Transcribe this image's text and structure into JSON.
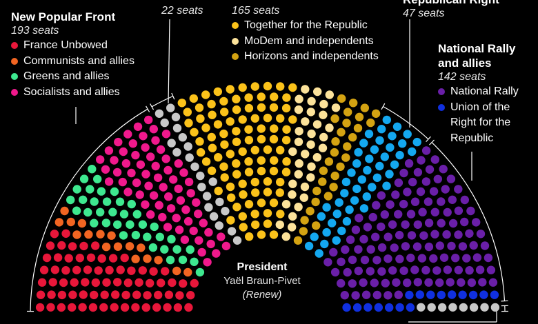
{
  "chart_data": {
    "type": "hemicycle",
    "title": "",
    "total_seats": 577,
    "groups": [
      {
        "key": "nfp",
        "name": "New Popular Front",
        "seats_label": "193 seats",
        "seats": 193,
        "parties": [
          {
            "name": "France Unbowed",
            "color": "#e8173a",
            "seats": 72
          },
          {
            "name": "Communists and allies",
            "color": "#f26522",
            "seats": 17
          },
          {
            "name": "Greens and allies",
            "color": "#3ee88f",
            "seats": 38
          },
          {
            "name": "Socialists and allies",
            "color": "#f0198c",
            "seats": 66
          }
        ]
      },
      {
        "key": "other",
        "name": "",
        "seats_label": "22 seats",
        "seats": 22,
        "parties": [
          {
            "name": "",
            "color": "#c8c8c8",
            "seats": 22
          }
        ]
      },
      {
        "key": "ensemble",
        "name": "",
        "seats_label": "165 seats",
        "seats": 165,
        "parties": [
          {
            "name": "Together for the Republic",
            "color": "#fbc21a",
            "seats": 99
          },
          {
            "name": "MoDem and independents",
            "color": "#fce29a",
            "seats": 36
          },
          {
            "name": "Horizons and independents",
            "color": "#d4a312",
            "seats": 30
          }
        ]
      },
      {
        "key": "lr",
        "name": "Republican Right",
        "seats_label": "47 seats",
        "seats": 47,
        "parties": [
          {
            "name": "Republican Right",
            "color": "#14a8f0",
            "seats": 47
          }
        ]
      },
      {
        "key": "rn",
        "name": "National Rally and allies",
        "seats_label": "142 seats",
        "seats": 142,
        "parties": [
          {
            "name": "National Rally",
            "color": "#6a1fa8",
            "seats": 126
          },
          {
            "name": "Union of the Right for the Republic",
            "color": "#1030e0",
            "seats": 16
          }
        ]
      },
      {
        "key": "ni",
        "name": "",
        "seats_label": "",
        "seats": 8,
        "parties": [
          {
            "name": "",
            "color": "#c8c8c8",
            "seats": 8
          }
        ]
      }
    ],
    "president": {
      "title": "President",
      "name": "Yaël Braun-Pivet",
      "party": "(Renew)"
    }
  },
  "labels": {
    "nfp_title": "New Popular Front",
    "nfp_seats": "193 seats",
    "nfp_items": [
      "France Unbowed",
      "Communists and allies",
      "Greens and allies",
      "Socialists and allies"
    ],
    "other_seats": "22 seats",
    "ens_seats": "165 seats",
    "ens_items": [
      "Together for the Republic",
      "MoDem and independents",
      "Horizons and independents"
    ],
    "lr_title": "Republican Right",
    "lr_seats": "47 seats",
    "rn_title_1": "National Rally",
    "rn_title_2": "and allies",
    "rn_seats": "142 seats",
    "rn_items": [
      "National Rally",
      "Union of the Right for the Republic"
    ]
  }
}
